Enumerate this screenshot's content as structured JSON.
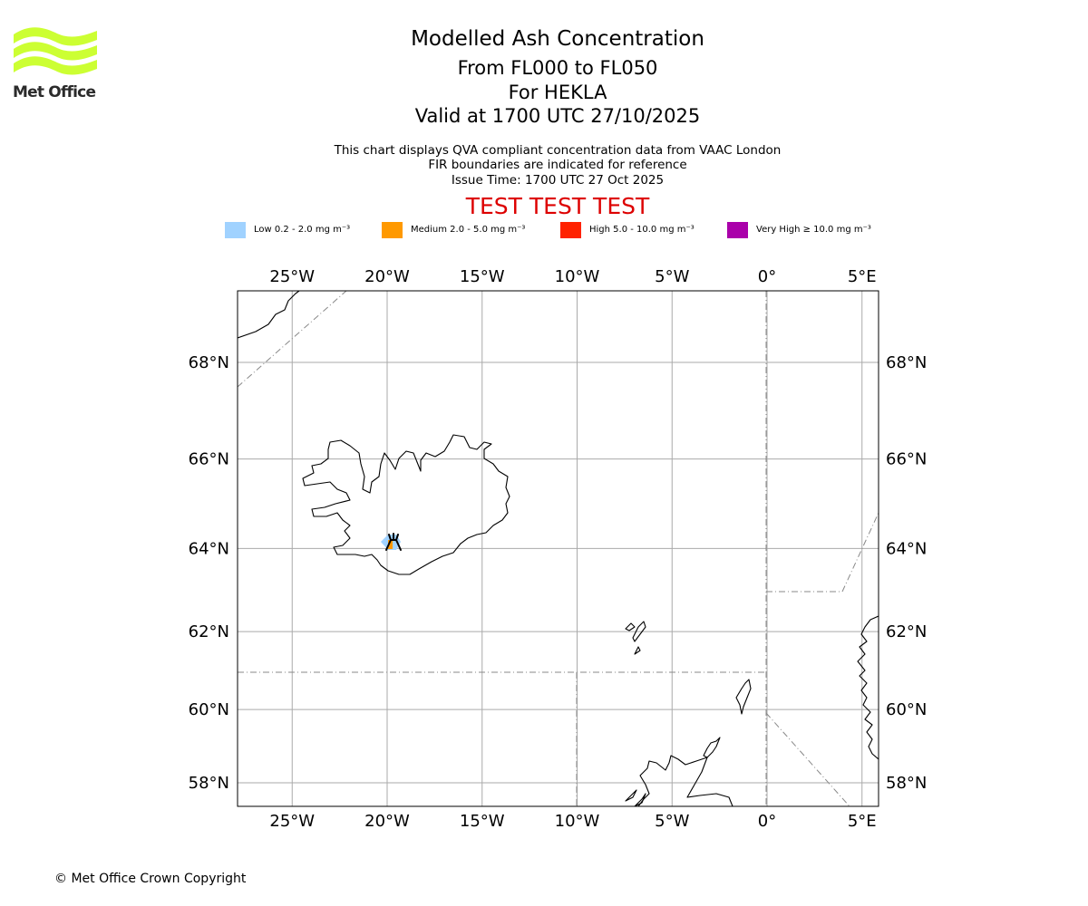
{
  "brand": {
    "name": "Met Office",
    "logo_color": "#ccff33",
    "text_color": "#2b2b2b"
  },
  "title": {
    "line1": "Modelled Ash Concentration",
    "line2": "From FL000 to FL050",
    "line3": "For HEKLA",
    "line4": "Valid at 1700 UTC 27/10/2025"
  },
  "subtitle": {
    "line1": "This chart displays QVA compliant concentration data from VAAC London",
    "line2": "FIR boundaries are indicated for reference",
    "line3": "Issue Time: 1700 UTC 27 Oct 2025"
  },
  "warning": {
    "text": "TEST TEST TEST",
    "color": "#dd0000"
  },
  "legend": [
    {
      "label": "Low 0.2 - 2.0 mg m⁻³",
      "color": "#a0d2ff"
    },
    {
      "label": "Medium 2.0 - 5.0 mg m⁻³",
      "color": "#ff9900"
    },
    {
      "label": "High 5.0 - 10.0 mg m⁻³",
      "color": "#ff2200"
    },
    {
      "label": "Very High  ≥  10.0 mg m⁻³",
      "color": "#aa00aa"
    }
  ],
  "map": {
    "lon_ticks": [
      {
        "lon": -25,
        "label": "25°W"
      },
      {
        "lon": -20,
        "label": "20°W"
      },
      {
        "lon": -15,
        "label": "15°W"
      },
      {
        "lon": -10,
        "label": "10°W"
      },
      {
        "lon": -5,
        "label": "5°W"
      },
      {
        "lon": 0,
        "label": "0°"
      },
      {
        "lon": 5,
        "label": "5°E"
      }
    ],
    "lat_ticks": [
      {
        "lat": 68,
        "label": "68°N"
      },
      {
        "lat": 66,
        "label": "66°N"
      },
      {
        "lat": 64,
        "label": "64°N"
      },
      {
        "lat": 62,
        "label": "62°N"
      },
      {
        "lat": 60,
        "label": "60°N"
      },
      {
        "lat": 58,
        "label": "58°N"
      }
    ],
    "volcano": {
      "name": "HEKLA",
      "lat": 63.99,
      "lon": -19.67
    }
  },
  "copyright": "© Met Office Crown Copyright"
}
